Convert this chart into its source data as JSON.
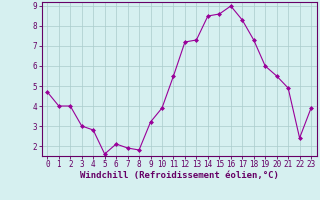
{
  "x": [
    0,
    1,
    2,
    3,
    4,
    5,
    6,
    7,
    8,
    9,
    10,
    11,
    12,
    13,
    14,
    15,
    16,
    17,
    18,
    19,
    20,
    21,
    22,
    23
  ],
  "y": [
    4.7,
    4.0,
    4.0,
    3.0,
    2.8,
    1.6,
    2.1,
    1.9,
    1.8,
    3.2,
    3.9,
    5.5,
    7.2,
    7.3,
    8.5,
    8.6,
    9.0,
    8.3,
    7.3,
    6.0,
    5.5,
    4.9,
    2.4,
    3.9
  ],
  "line_color": "#990099",
  "marker": "D",
  "marker_size": 2,
  "bg_color": "#d6f0f0",
  "grid_color": "#aacccc",
  "xlabel": "Windchill (Refroidissement éolien,°C)",
  "ylim": [
    1.5,
    9.2
  ],
  "xlim": [
    -0.5,
    23.5
  ],
  "yticks": [
    2,
    3,
    4,
    5,
    6,
    7,
    8,
    9
  ],
  "xticks": [
    0,
    1,
    2,
    3,
    4,
    5,
    6,
    7,
    8,
    9,
    10,
    11,
    12,
    13,
    14,
    15,
    16,
    17,
    18,
    19,
    20,
    21,
    22,
    23
  ],
  "tick_fontsize": 5.5,
  "xlabel_fontsize": 6.5,
  "axis_color": "#660066",
  "spine_color": "#660066"
}
